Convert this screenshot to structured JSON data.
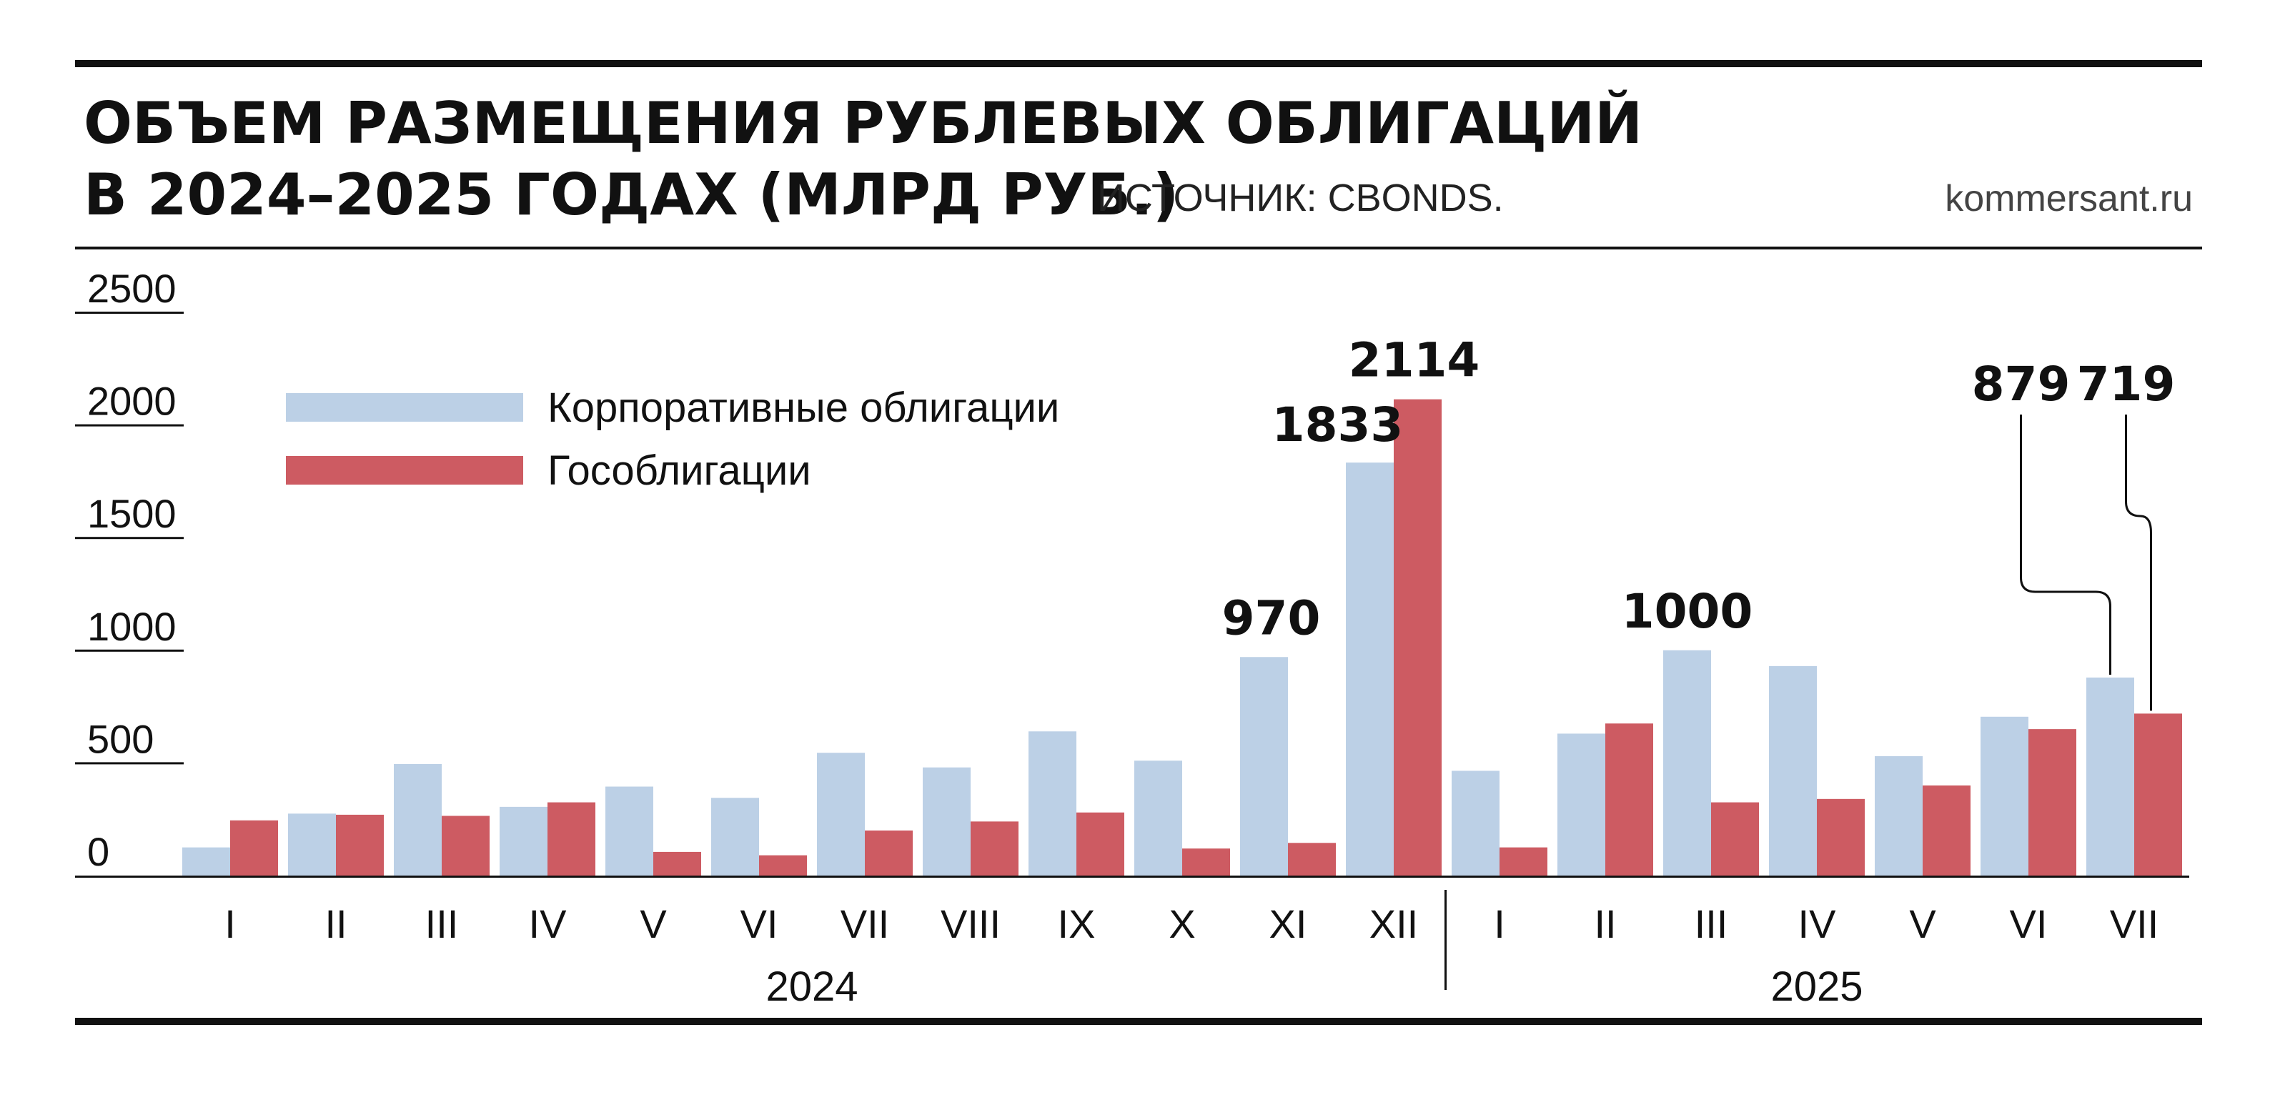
{
  "header": {
    "title_line1": "ОБЪЕМ РАЗМЕЩЕНИЯ РУБЛЕВЫХ ОБЛИГАЦИЙ",
    "title_line2": "В 2024–2025 ГОДАХ (МЛРД РУБ.)",
    "source": "ИСТОЧНИК: CBONDS.",
    "site": "kommersant.ru"
  },
  "colors": {
    "corporate": "#bcd0e6",
    "government": "#cd5b62",
    "rule": "#111111"
  },
  "chart_data": {
    "type": "bar",
    "title": "ОБЪЕМ РАЗМЕЩЕНИЯ РУБЛЕВЫХ ОБЛИГАЦИЙ В 2024–2025 ГОДАХ (МЛРД РУБ.)",
    "ylim": [
      0,
      2500
    ],
    "yticks": [
      "2500",
      "2000",
      "1500",
      "1000",
      "500",
      "0"
    ],
    "grid": false,
    "legend_position": "top-left",
    "categories": [
      "I",
      "II",
      "III",
      "IV",
      "V",
      "VI",
      "VII",
      "VIII",
      "IX",
      "X",
      "XI",
      "XII",
      "I",
      "II",
      "III",
      "IV",
      "V",
      "VI",
      "VII"
    ],
    "groups": [
      {
        "label": "2024",
        "count": 12
      },
      {
        "label": "2025",
        "count": 7
      }
    ],
    "series": [
      {
        "name": "Корпоративные облигации",
        "values": [
          125,
          275,
          495,
          305,
          395,
          345,
          545,
          480,
          640,
          510,
          970,
          1833,
          465,
          630,
          1000,
          930,
          530,
          705,
          879
        ]
      },
      {
        "name": "Гособлигации",
        "values": [
          245,
          270,
          265,
          325,
          105,
          90,
          200,
          240,
          280,
          120,
          145,
          2114,
          125,
          675,
          325,
          340,
          400,
          650,
          719
        ]
      }
    ],
    "data_labels": [
      {
        "text": "970",
        "series": 0,
        "index": 10
      },
      {
        "text": "1833",
        "series": 0,
        "index": 11
      },
      {
        "text": "2114",
        "series": 1,
        "index": 11
      },
      {
        "text": "1000",
        "series": 0,
        "index": 14
      },
      {
        "text": "879",
        "series": 0,
        "index": 18
      },
      {
        "text": "719",
        "series": 1,
        "index": 18
      }
    ]
  }
}
